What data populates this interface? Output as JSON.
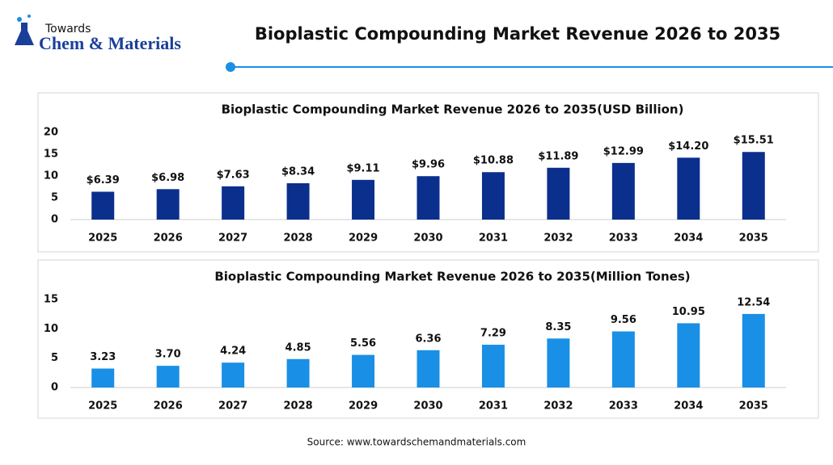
{
  "header": {
    "logo_top": "Towards",
    "logo_name": "Chem & Materials",
    "title": "Bioplastic Compounding Market Revenue 2026 to 2035"
  },
  "chart_data": [
    {
      "type": "bar",
      "title": "Bioplastic Compounding Market Revenue 2026 to 2035(USD Billion)",
      "categories": [
        "2025",
        "2026",
        "2027",
        "2028",
        "2029",
        "2030",
        "2031",
        "2032",
        "2033",
        "2034",
        "2035"
      ],
      "values": [
        6.39,
        6.98,
        7.63,
        8.34,
        9.11,
        9.96,
        10.88,
        11.89,
        12.99,
        14.2,
        15.51
      ],
      "value_labels": [
        "$6.39",
        "$6.98",
        "$7.63",
        "$8.34",
        "$9.11",
        "$9.96",
        "$10.88",
        "$11.89",
        "$12.99",
        "$14.20",
        "$15.51"
      ],
      "color": "#0b2f8c",
      "ylim": [
        0,
        20
      ],
      "yticks": [
        0,
        5,
        10,
        15,
        20
      ],
      "grid": false
    },
    {
      "type": "bar",
      "title": "Bioplastic Compounding Market Revenue 2026 to 2035(Million Tones)",
      "categories": [
        "2025",
        "2026",
        "2027",
        "2028",
        "2029",
        "2030",
        "2031",
        "2032",
        "2033",
        "2034",
        "2035"
      ],
      "values": [
        3.23,
        3.7,
        4.24,
        4.85,
        5.56,
        6.36,
        7.29,
        8.35,
        9.56,
        10.95,
        12.54
      ],
      "value_labels": [
        "3.23",
        "3.70",
        "4.24",
        "4.85",
        "5.56",
        "6.36",
        "7.29",
        "8.35",
        "9.56",
        "10.95",
        "12.54"
      ],
      "color": "#1a8fe6",
      "ylim": [
        0,
        15
      ],
      "yticks": [
        0,
        5,
        10,
        15
      ],
      "grid": false
    }
  ],
  "source": "Source: www.towardschemandmaterials.com"
}
